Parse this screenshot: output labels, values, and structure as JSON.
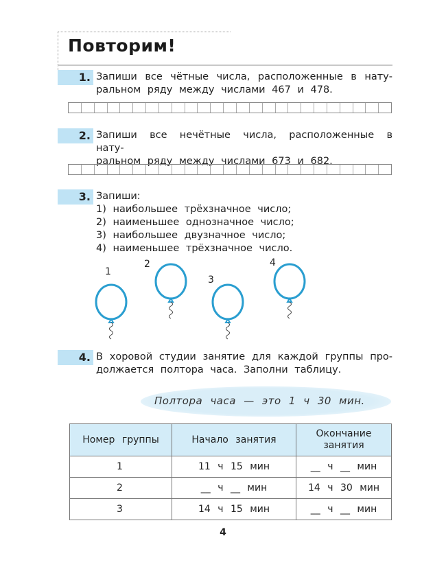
{
  "title": "Повторим!",
  "tasks": [
    {
      "number": "1.",
      "lines": [
        "Запиши все чётные числа, расположенные в нату-",
        "ральном ряду между числами 467 и 478."
      ]
    },
    {
      "number": "2.",
      "lines": [
        "Запиши все нечётные числа, расположенные в нату-",
        "ральном ряду между числами 673 и 682."
      ]
    },
    {
      "number": "3.",
      "lines": [
        "Запиши:",
        "1) наибольшее трёхзначное число;",
        "2) наименьшее однозначное число;",
        "3) наибольшее двузначное число;",
        "4) наименьшее трёхзначное число."
      ]
    },
    {
      "number": "4.",
      "lines": [
        "В хоровой студии занятие для каждой группы про-",
        "должается полтора часа. Заполни таблицу."
      ]
    }
  ],
  "balloons": [
    "1",
    "2",
    "3",
    "4"
  ],
  "balloon_color": "#2a9ed0",
  "note": "Полтора часа — это 1 ч 30 мин.",
  "table": {
    "headers": [
      "Номер группы",
      "Начало занятия",
      "Окончание занятия"
    ],
    "rows": [
      [
        "1",
        "11 ч 15 мин",
        "__ ч __ мин"
      ],
      [
        "2",
        "__ ч __ мин",
        "14 ч 30 мин"
      ],
      [
        "3",
        "14 ч 15 мин",
        "__ ч __ мин"
      ]
    ]
  },
  "page_number": "4"
}
